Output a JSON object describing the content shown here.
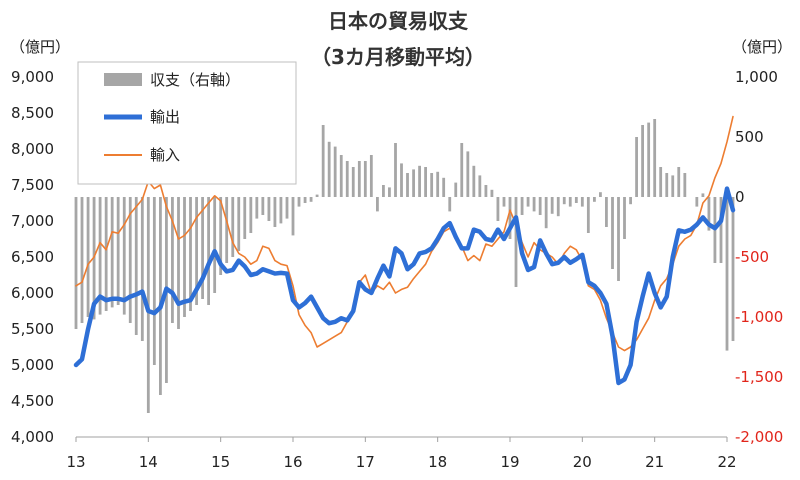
{
  "chart_data": {
    "type": "bar-line",
    "title": "日本の貿易収支",
    "subtitle": "（3カ月移動平均）",
    "y_left_unit": "（億円）",
    "y_right_unit": "（億円）",
    "y_left_ticks": [
      "9,000",
      "8,500",
      "8,000",
      "7,500",
      "7,000",
      "6,500",
      "6,000",
      "5,500",
      "5,000",
      "4,500",
      "4,000"
    ],
    "y_right_ticks": [
      "1,000",
      "500",
      "0",
      "-500",
      "-1,000",
      "-1,500",
      "-2,000"
    ],
    "x_ticks": [
      "13",
      "14",
      "15",
      "16",
      "17",
      "18",
      "19",
      "20",
      "21",
      "22"
    ],
    "ylim_left": [
      4000,
      9000
    ],
    "ylim_right": [
      -2000,
      1000
    ],
    "x_range": [
      2013.0,
      2022.0
    ],
    "grid": false,
    "legend": {
      "position": "top-left",
      "entries": [
        "収支（右軸）",
        "輸出",
        "輸入"
      ]
    },
    "colors": {
      "balance": "#a6a6a6",
      "export": "#2e6fd6",
      "import": "#ed7d31",
      "negative_tick": "#e1251b"
    },
    "series": [
      {
        "name": "収支（右軸）",
        "axis": "right",
        "style": "bar",
        "x": [
          2013.0,
          2013.083,
          2013.167,
          2013.25,
          2013.333,
          2013.417,
          2013.5,
          2013.583,
          2013.667,
          2013.75,
          2013.833,
          2013.917,
          2014.0,
          2014.083,
          2014.167,
          2014.25,
          2014.333,
          2014.417,
          2014.5,
          2014.583,
          2014.667,
          2014.75,
          2014.833,
          2014.917,
          2015.0,
          2015.083,
          2015.167,
          2015.25,
          2015.333,
          2015.417,
          2015.5,
          2015.583,
          2015.667,
          2015.75,
          2015.833,
          2015.917,
          2016.0,
          2016.083,
          2016.167,
          2016.25,
          2016.333,
          2016.417,
          2016.5,
          2016.583,
          2016.667,
          2016.75,
          2016.833,
          2016.917,
          2017.0,
          2017.083,
          2017.167,
          2017.25,
          2017.333,
          2017.417,
          2017.5,
          2017.583,
          2017.667,
          2017.75,
          2017.833,
          2017.917,
          2018.0,
          2018.083,
          2018.167,
          2018.25,
          2018.333,
          2018.417,
          2018.5,
          2018.583,
          2018.667,
          2018.75,
          2018.833,
          2018.917,
          2019.0,
          2019.083,
          2019.167,
          2019.25,
          2019.333,
          2019.417,
          2019.5,
          2019.583,
          2019.667,
          2019.75,
          2019.833,
          2019.917,
          2020.0,
          2020.083,
          2020.167,
          2020.25,
          2020.333,
          2020.417,
          2020.5,
          2020.583,
          2020.667,
          2020.75,
          2020.833,
          2020.917,
          2021.0,
          2021.083,
          2021.167,
          2021.25,
          2021.333,
          2021.417,
          2021.5,
          2021.583,
          2021.667,
          2021.75,
          2021.833,
          2021.917,
          2022.0,
          2022.083
        ],
        "values": [
          -1100,
          -1050,
          -1000,
          -1020,
          -980,
          -950,
          -920,
          -900,
          -980,
          -1050,
          -1150,
          -1200,
          -1800,
          -1400,
          -1650,
          -1550,
          -1050,
          -1100,
          -1000,
          -950,
          -900,
          -850,
          -900,
          -800,
          -650,
          -550,
          -500,
          -450,
          -350,
          -300,
          -180,
          -150,
          -200,
          -250,
          -220,
          -180,
          -320,
          -80,
          -50,
          -40,
          20,
          600,
          460,
          420,
          350,
          300,
          250,
          300,
          300,
          350,
          -120,
          100,
          80,
          450,
          280,
          200,
          230,
          260,
          250,
          200,
          210,
          160,
          -120,
          120,
          450,
          380,
          260,
          180,
          100,
          60,
          -200,
          -80,
          -350,
          -750,
          -150,
          -80,
          -120,
          -150,
          -260,
          -140,
          -160,
          -60,
          -80,
          -50,
          -80,
          -300,
          -40,
          40,
          -250,
          -600,
          -700,
          -350,
          -60,
          500,
          600,
          620,
          650,
          250,
          200,
          180,
          250,
          200,
          0,
          -80,
          30,
          -280,
          -550,
          -550,
          -1280,
          -1200
        ],
        "note": "Approximate bar values read from image; bars are monthly 3-month moving average of trade balance in 億円"
      },
      {
        "name": "輸出",
        "axis": "left",
        "style": "line",
        "x": [
          2013.0,
          2013.083,
          2013.167,
          2013.25,
          2013.333,
          2013.417,
          2013.5,
          2013.583,
          2013.667,
          2013.75,
          2013.833,
          2013.917,
          2014.0,
          2014.083,
          2014.167,
          2014.25,
          2014.333,
          2014.417,
          2014.5,
          2014.583,
          2014.667,
          2014.75,
          2014.833,
          2014.917,
          2015.0,
          2015.083,
          2015.167,
          2015.25,
          2015.333,
          2015.417,
          2015.5,
          2015.583,
          2015.667,
          2015.75,
          2015.833,
          2015.917,
          2016.0,
          2016.083,
          2016.167,
          2016.25,
          2016.333,
          2016.417,
          2016.5,
          2016.583,
          2016.667,
          2016.75,
          2016.833,
          2016.917,
          2017.0,
          2017.083,
          2017.167,
          2017.25,
          2017.333,
          2017.417,
          2017.5,
          2017.583,
          2017.667,
          2017.75,
          2017.833,
          2017.917,
          2018.0,
          2018.083,
          2018.167,
          2018.25,
          2018.333,
          2018.417,
          2018.5,
          2018.583,
          2018.667,
          2018.75,
          2018.833,
          2018.917,
          2019.0,
          2019.083,
          2019.167,
          2019.25,
          2019.333,
          2019.417,
          2019.5,
          2019.583,
          2019.667,
          2019.75,
          2019.833,
          2019.917,
          2020.0,
          2020.083,
          2020.167,
          2020.25,
          2020.333,
          2020.417,
          2020.5,
          2020.583,
          2020.667,
          2020.75,
          2020.833,
          2020.917,
          2021.0,
          2021.083,
          2021.167,
          2021.25,
          2021.333,
          2021.417,
          2021.5,
          2021.583,
          2021.667,
          2021.75,
          2021.833,
          2021.917,
          2022.0,
          2022.083
        ],
        "values": [
          5000,
          5080,
          5500,
          5850,
          5950,
          5900,
          5920,
          5920,
          5900,
          5950,
          5980,
          6020,
          5750,
          5720,
          5800,
          6060,
          6000,
          5850,
          5880,
          5900,
          6050,
          6200,
          6400,
          6580,
          6400,
          6300,
          6320,
          6450,
          6370,
          6250,
          6270,
          6330,
          6300,
          6270,
          6280,
          6270,
          5900,
          5800,
          5860,
          5950,
          5800,
          5650,
          5580,
          5600,
          5650,
          5620,
          5750,
          6150,
          6050,
          6000,
          6200,
          6380,
          6230,
          6620,
          6550,
          6330,
          6400,
          6550,
          6570,
          6620,
          6750,
          6900,
          6970,
          6780,
          6620,
          6620,
          6880,
          6850,
          6750,
          6730,
          6880,
          6750,
          6900,
          7050,
          6550,
          6320,
          6360,
          6730,
          6550,
          6400,
          6420,
          6500,
          6420,
          6470,
          6530,
          6150,
          6100,
          6000,
          5850,
          5400,
          4750,
          4800,
          5000,
          5600,
          5950,
          6270,
          6000,
          5800,
          5950,
          6500,
          6870,
          6850,
          6880,
          6950,
          7050,
          6950,
          6900,
          7000,
          7450,
          7150
        ]
      },
      {
        "name": "輸入",
        "axis": "left",
        "style": "line",
        "x": [
          2013.0,
          2013.083,
          2013.167,
          2013.25,
          2013.333,
          2013.417,
          2013.5,
          2013.583,
          2013.667,
          2013.75,
          2013.833,
          2013.917,
          2014.0,
          2014.083,
          2014.167,
          2014.25,
          2014.333,
          2014.417,
          2014.5,
          2014.583,
          2014.667,
          2014.75,
          2014.833,
          2014.917,
          2015.0,
          2015.083,
          2015.167,
          2015.25,
          2015.333,
          2015.417,
          2015.5,
          2015.583,
          2015.667,
          2015.75,
          2015.833,
          2015.917,
          2016.0,
          2016.083,
          2016.167,
          2016.25,
          2016.333,
          2016.417,
          2016.5,
          2016.583,
          2016.667,
          2016.75,
          2016.833,
          2016.917,
          2017.0,
          2017.083,
          2017.167,
          2017.25,
          2017.333,
          2017.417,
          2017.5,
          2017.583,
          2017.667,
          2017.75,
          2017.833,
          2017.917,
          2018.0,
          2018.083,
          2018.167,
          2018.25,
          2018.333,
          2018.417,
          2018.5,
          2018.583,
          2018.667,
          2018.75,
          2018.833,
          2018.917,
          2019.0,
          2019.083,
          2019.167,
          2019.25,
          2019.333,
          2019.417,
          2019.5,
          2019.583,
          2019.667,
          2019.75,
          2019.833,
          2019.917,
          2020.0,
          2020.083,
          2020.167,
          2020.25,
          2020.333,
          2020.417,
          2020.5,
          2020.583,
          2020.667,
          2020.75,
          2020.833,
          2020.917,
          2021.0,
          2021.083,
          2021.167,
          2021.25,
          2021.333,
          2021.417,
          2021.5,
          2021.583,
          2021.667,
          2021.75,
          2021.833,
          2021.917,
          2022.0,
          2022.083
        ],
        "values": [
          6100,
          6150,
          6400,
          6500,
          6700,
          6600,
          6850,
          6830,
          6950,
          7100,
          7200,
          7300,
          7550,
          7450,
          7500,
          7200,
          7000,
          6750,
          6800,
          6900,
          7050,
          7150,
          7250,
          7350,
          7280,
          7000,
          6700,
          6550,
          6500,
          6400,
          6450,
          6650,
          6620,
          6450,
          6400,
          6380,
          6100,
          5700,
          5550,
          5450,
          5250,
          5300,
          5350,
          5400,
          5450,
          5600,
          5800,
          6150,
          6250,
          6000,
          6100,
          6050,
          6150,
          6000,
          6050,
          6080,
          6200,
          6300,
          6400,
          6580,
          6700,
          6850,
          6900,
          6800,
          6650,
          6450,
          6520,
          6450,
          6680,
          6650,
          6750,
          6850,
          7150,
          6950,
          6700,
          6500,
          6700,
          6600,
          6550,
          6500,
          6400,
          6550,
          6650,
          6600,
          6450,
          6100,
          6050,
          5900,
          5650,
          5450,
          5250,
          5200,
          5250,
          5350,
          5500,
          5650,
          5900,
          6100,
          6200,
          6400,
          6650,
          6750,
          6800,
          6950,
          7250,
          7350,
          7600,
          7800,
          8100,
          8450
        ]
      }
    ]
  }
}
